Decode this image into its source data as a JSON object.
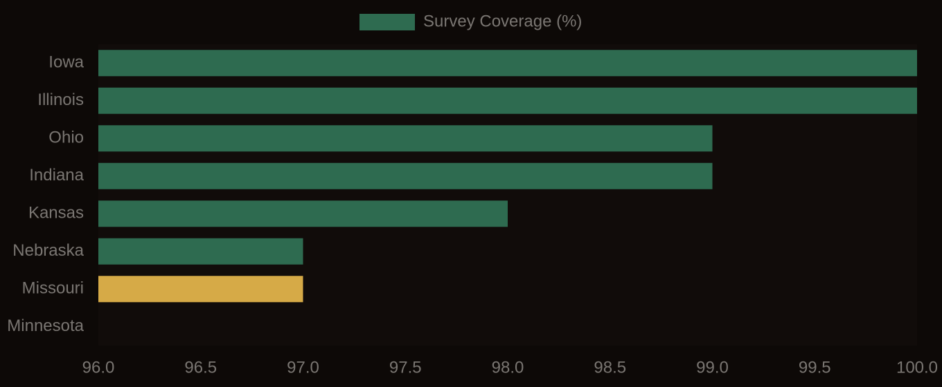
{
  "colors": {
    "background": "#0d0907",
    "bar": "#2e6b50",
    "highlight": "#d6aa47",
    "text": "#7a7672"
  },
  "legend": {
    "label": "Survey Coverage (%)",
    "placement": "top-center"
  },
  "chart_data": {
    "type": "bar",
    "orientation": "horizontal",
    "title": "",
    "xlabel": "",
    "ylabel": "",
    "xlim": [
      96.0,
      100.0
    ],
    "grid": false,
    "x_ticks": [
      "96.0",
      "96.5",
      "97.0",
      "97.5",
      "98.0",
      "98.5",
      "99.0",
      "99.5",
      "100.0"
    ],
    "categories": [
      "Iowa",
      "Illinois",
      "Ohio",
      "Indiana",
      "Kansas",
      "Nebraska",
      "Missouri",
      "Minnesota"
    ],
    "series": [
      {
        "name": "Survey Coverage (%)",
        "values": [
          100.0,
          100.0,
          99.0,
          99.0,
          98.0,
          97.0,
          97.0,
          96.0
        ]
      }
    ],
    "highlighted_category": "Missouri"
  }
}
